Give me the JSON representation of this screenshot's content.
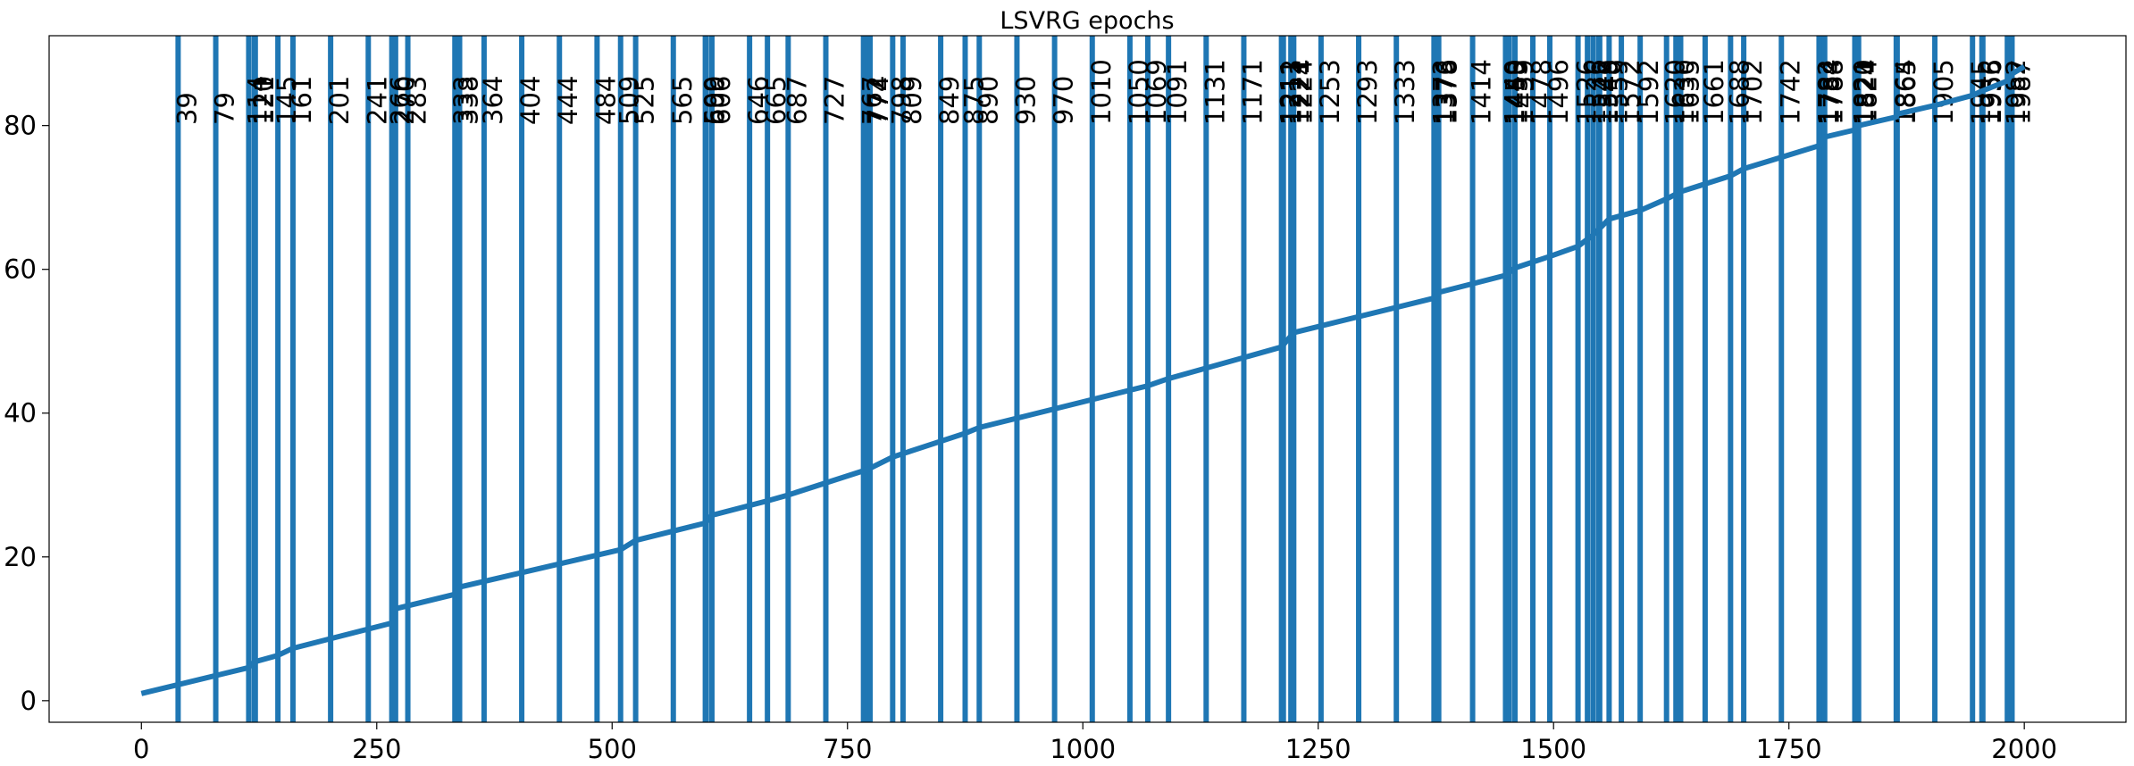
{
  "chart_data": {
    "type": "line",
    "title": "LSVRG epochs",
    "xlabel": "",
    "ylabel": "",
    "xlim": [
      -98,
      2108
    ],
    "ylim": [
      -3,
      92.5
    ],
    "x_ticks": [
      0,
      250,
      500,
      750,
      1000,
      1250,
      1500,
      1750,
      2000
    ],
    "y_ticks": [
      0,
      20,
      40,
      60,
      80
    ],
    "grid": false,
    "color": "#1f77b4",
    "vertical_lines": [
      39,
      79,
      114,
      120,
      121,
      145,
      161,
      201,
      241,
      266,
      270,
      283,
      333,
      338,
      364,
      404,
      444,
      484,
      509,
      525,
      565,
      599,
      600,
      606,
      646,
      665,
      687,
      727,
      767,
      772,
      774,
      798,
      809,
      849,
      875,
      890,
      930,
      970,
      1010,
      1050,
      1069,
      1091,
      1131,
      1171,
      1211,
      1212,
      1213,
      1221,
      1224,
      1253,
      1293,
      1333,
      1373,
      1376,
      1378,
      1414,
      1449,
      1450,
      1453,
      1459,
      1478,
      1496,
      1526,
      1536,
      1542,
      1548,
      1549,
      1559,
      1572,
      1592,
      1620,
      1630,
      1635,
      1661,
      1688,
      1702,
      1742,
      1782,
      1784,
      1788,
      1820,
      1821,
      1824,
      1864,
      1865,
      1905,
      1945,
      1955,
      1956,
      1982,
      1987
    ],
    "series": [
      {
        "x": [
          0,
          114,
          120,
          145,
          161,
          266,
          270,
          333,
          338,
          509,
          525,
          599,
          606,
          665,
          687,
          772,
          798,
          875,
          890,
          1069,
          1091,
          1211,
          1224,
          1373,
          1378,
          1450,
          1459,
          1496,
          1526,
          1542,
          1559,
          1592,
          1620,
          1635,
          1688,
          1702,
          1742,
          1782,
          1788,
          1820,
          1824,
          1864,
          1865,
          1905,
          1945,
          1955,
          1982,
          1987,
          2000
        ],
        "y": [
          1,
          4.6,
          5.4,
          6.3,
          7.3,
          10.8,
          12.8,
          14.8,
          15.8,
          21.0,
          22.3,
          24.7,
          25.8,
          27.8,
          28.6,
          32.2,
          33.9,
          37.2,
          38.0,
          43.8,
          44.8,
          49.2,
          51.2,
          56.0,
          56.8,
          59.2,
          60.2,
          61.8,
          63.2,
          64.8,
          67.0,
          68.2,
          69.8,
          70.8,
          73.0,
          74.0,
          75.6,
          77.2,
          78.4,
          79.4,
          80.0,
          81.2,
          81.6,
          82.8,
          84.2,
          84.8,
          86.2,
          87.2,
          88.2
        ]
      }
    ]
  }
}
